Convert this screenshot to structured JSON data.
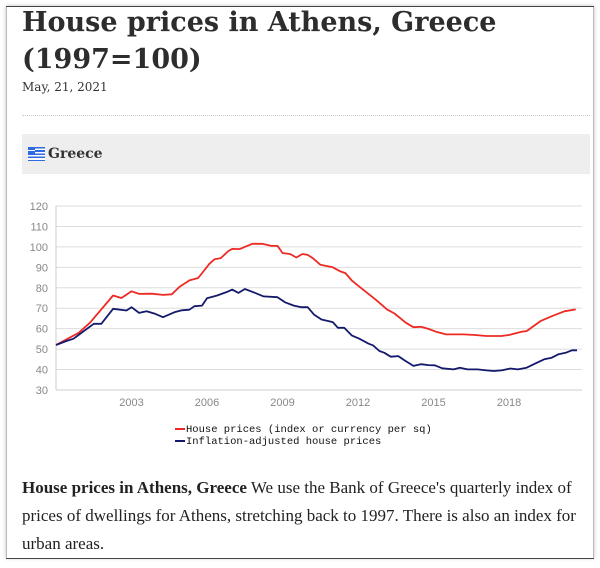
{
  "article": {
    "title": "House prices in Athens, Greece (1997=100)",
    "date": "May, 21, 2021",
    "country": "Greece",
    "country_icon": "greece-flag-icon",
    "description_bold": "House prices in Athens, Greece",
    "description_text": " We use the Bank of Greece's quarterly index of prices of dwellings for Athens, stretching back to 1997. There is also an index for urban areas."
  },
  "chart_data": {
    "type": "line",
    "title": "",
    "xlabel": "",
    "ylabel": "",
    "xlim": [
      2000,
      2020.9
    ],
    "ylim": [
      30,
      120
    ],
    "x_ticks": [
      "2003",
      "2006",
      "2009",
      "2012",
      "2015",
      "2018"
    ],
    "y_ticks": [
      "30",
      "40",
      "50",
      "60",
      "70",
      "80",
      "90",
      "100",
      "110",
      "120"
    ],
    "grid": "horizontal",
    "legend_position": "bottom",
    "series": [
      {
        "name": "House prices (index or currency per sq)",
        "color": "#ee2a24",
        "points": [
          [
            2000.0,
            52
          ],
          [
            2000.9,
            58
          ],
          [
            2001.35,
            62.9
          ],
          [
            2002.27,
            76.2
          ],
          [
            2002.6,
            75
          ],
          [
            2003.0,
            78.3
          ],
          [
            2003.3,
            77
          ],
          [
            2003.8,
            77.1
          ],
          [
            2004.25,
            76.5
          ],
          [
            2004.6,
            76.8
          ],
          [
            2004.9,
            80.4
          ],
          [
            2005.3,
            83.6
          ],
          [
            2005.65,
            84.8
          ],
          [
            2006.1,
            91.8
          ],
          [
            2006.3,
            94
          ],
          [
            2006.55,
            94.5
          ],
          [
            2006.85,
            98
          ],
          [
            2007.0,
            99
          ],
          [
            2007.3,
            98.9
          ],
          [
            2007.8,
            101.5
          ],
          [
            2008.2,
            101.5
          ],
          [
            2008.55,
            100.5
          ],
          [
            2008.8,
            100.5
          ],
          [
            2009.0,
            97
          ],
          [
            2009.3,
            96.5
          ],
          [
            2009.55,
            94.8
          ],
          [
            2009.8,
            96.5
          ],
          [
            2010.0,
            96.1
          ],
          [
            2010.2,
            94.5
          ],
          [
            2010.5,
            91.3
          ],
          [
            2011.0,
            90
          ],
          [
            2011.3,
            88
          ],
          [
            2011.5,
            87.2
          ],
          [
            2011.75,
            83.6
          ],
          [
            2012.2,
            79.1
          ],
          [
            2012.7,
            74.2
          ],
          [
            2013.15,
            69.4
          ],
          [
            2013.45,
            67.4
          ],
          [
            2013.9,
            62.9
          ],
          [
            2014.2,
            60.7
          ],
          [
            2014.5,
            60.9
          ],
          [
            2014.8,
            59.9
          ],
          [
            2015.1,
            58.5
          ],
          [
            2015.5,
            57.2
          ],
          [
            2016.2,
            57.2
          ],
          [
            2016.65,
            56.9
          ],
          [
            2017.1,
            56.4
          ],
          [
            2017.7,
            56.4
          ],
          [
            2018.0,
            56.9
          ],
          [
            2018.5,
            58.5
          ],
          [
            2018.7,
            58.8
          ],
          [
            2019.25,
            63.7
          ],
          [
            2019.7,
            66.1
          ],
          [
            2020.2,
            68.5
          ],
          [
            2020.65,
            69.4
          ]
        ]
      },
      {
        "name": "Inflation-adjusted house prices",
        "color": "#14196b",
        "points": [
          [
            2000.0,
            52
          ],
          [
            2000.4,
            53.9
          ],
          [
            2000.7,
            55.1
          ],
          [
            2001.05,
            58.3
          ],
          [
            2001.5,
            62.4
          ],
          [
            2001.8,
            62.4
          ],
          [
            2002.27,
            69.7
          ],
          [
            2002.8,
            68.9
          ],
          [
            2003.0,
            70.5
          ],
          [
            2003.3,
            67.7
          ],
          [
            2003.6,
            68.5
          ],
          [
            2003.95,
            67.2
          ],
          [
            2004.25,
            65.6
          ],
          [
            2004.7,
            68
          ],
          [
            2005.0,
            69
          ],
          [
            2005.3,
            69.3
          ],
          [
            2005.5,
            71
          ],
          [
            2005.8,
            71.3
          ],
          [
            2006.0,
            74.9
          ],
          [
            2006.4,
            76.2
          ],
          [
            2006.8,
            78
          ],
          [
            2007.0,
            79.1
          ],
          [
            2007.25,
            77.5
          ],
          [
            2007.5,
            79.4
          ],
          [
            2007.85,
            77.8
          ],
          [
            2008.25,
            75.8
          ],
          [
            2008.8,
            75.4
          ],
          [
            2009.1,
            72.9
          ],
          [
            2009.45,
            71.3
          ],
          [
            2009.75,
            70.5
          ],
          [
            2010.0,
            70.5
          ],
          [
            2010.25,
            66.9
          ],
          [
            2010.55,
            64.5
          ],
          [
            2011.0,
            63.2
          ],
          [
            2011.2,
            60.4
          ],
          [
            2011.45,
            60.4
          ],
          [
            2011.75,
            56.7
          ],
          [
            2012.05,
            55.1
          ],
          [
            2012.4,
            52.8
          ],
          [
            2012.6,
            51.8
          ],
          [
            2012.85,
            49.1
          ],
          [
            2013.05,
            48.2
          ],
          [
            2013.3,
            46.3
          ],
          [
            2013.6,
            46.6
          ],
          [
            2013.85,
            44.5
          ],
          [
            2014.2,
            41.8
          ],
          [
            2014.5,
            42.6
          ],
          [
            2014.8,
            42.2
          ],
          [
            2015.05,
            42.1
          ],
          [
            2015.35,
            40.6
          ],
          [
            2015.8,
            40.1
          ],
          [
            2016.05,
            40.9
          ],
          [
            2016.35,
            40.1
          ],
          [
            2016.75,
            40.1
          ],
          [
            2017.1,
            39.6
          ],
          [
            2017.4,
            39.3
          ],
          [
            2017.7,
            39.6
          ],
          [
            2018.05,
            40.5
          ],
          [
            2018.35,
            40.1
          ],
          [
            2018.7,
            40.9
          ],
          [
            2019.05,
            43
          ],
          [
            2019.4,
            45
          ],
          [
            2019.7,
            45.8
          ],
          [
            2019.95,
            47.4
          ],
          [
            2020.25,
            48.2
          ],
          [
            2020.5,
            49.4
          ],
          [
            2020.7,
            49.4
          ]
        ]
      }
    ]
  }
}
